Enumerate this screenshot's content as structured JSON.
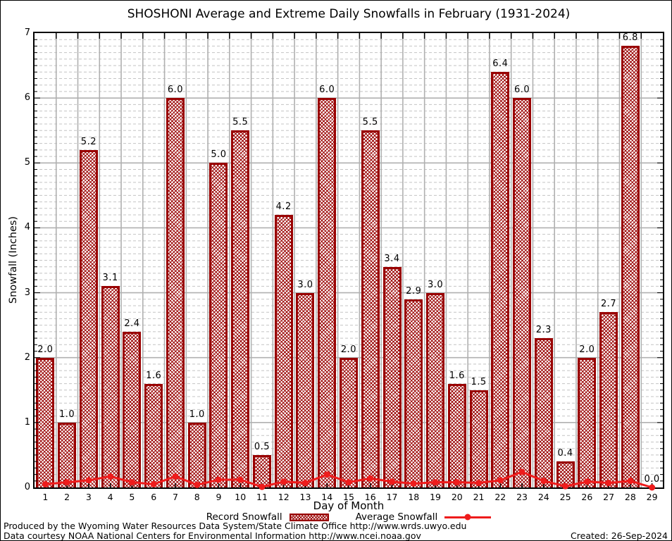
{
  "chart_data": {
    "type": "bar",
    "title": "SHOSHONI Average and Extreme Daily Snowfalls in February (1931-2024)",
    "xlabel": "Day of Month",
    "ylabel": "Snowfall (Inches)",
    "ylim": [
      0,
      7
    ],
    "y_major_step": 1,
    "y_minor_step": 0.1,
    "grid": true,
    "legend_position": "bottom",
    "categories": [
      1,
      2,
      3,
      4,
      5,
      6,
      7,
      8,
      9,
      10,
      11,
      12,
      13,
      14,
      15,
      16,
      17,
      18,
      19,
      20,
      21,
      22,
      23,
      24,
      25,
      26,
      27,
      28,
      29
    ],
    "series": [
      {
        "name": "Record Snowfall",
        "type": "bar",
        "color": "#990000",
        "values": [
          2.0,
          1.0,
          5.2,
          3.1,
          2.4,
          1.6,
          6.0,
          1.0,
          5.0,
          5.5,
          0.5,
          4.2,
          3.0,
          6.0,
          2.0,
          5.5,
          3.4,
          2.9,
          3.0,
          1.6,
          1.5,
          6.4,
          6.0,
          2.3,
          0.4,
          2.0,
          2.7,
          6.8,
          0.0
        ]
      },
      {
        "name": "Average Snowfall",
        "type": "line",
        "color": "#ee1c1c",
        "values": [
          0.05,
          0.08,
          0.11,
          0.17,
          0.08,
          0.05,
          0.17,
          0.04,
          0.12,
          0.12,
          0.01,
          0.09,
          0.07,
          0.2,
          0.08,
          0.14,
          0.09,
          0.06,
          0.08,
          0.08,
          0.07,
          0.11,
          0.24,
          0.1,
          0.02,
          0.09,
          0.07,
          0.1,
          0.0
        ]
      }
    ],
    "bar_label_format": "one_decimal",
    "y_tick_labels": [
      "0",
      "1",
      "2",
      "3",
      "4",
      "5",
      "6",
      "7"
    ]
  },
  "colors": {
    "bar": "#990000",
    "line": "#ee1c1c",
    "grid_major": "#b0b0b0",
    "grid_minor": "#c4c4c4",
    "axis": "#000000"
  },
  "footer": {
    "line1": "Produced by the Wyoming Water Resources Data System/State Climate Office http://www.wrds.uwyo.edu",
    "line2": "Data courtesy NOAA National Centers for Environmental Information http://www.ncei.noaa.gov",
    "created": "Created: 26-Sep-2024"
  }
}
